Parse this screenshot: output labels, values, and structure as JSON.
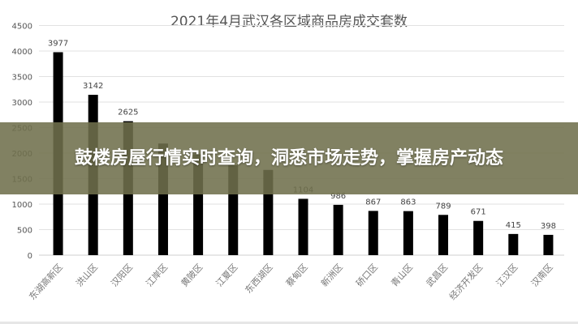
{
  "headline": "鼓楼房屋行情实时查询，洞悉市场走势，掌握房产动态",
  "chart_data": {
    "type": "bar",
    "title": "2021年4月武汉各区域商品房成交套数",
    "categories": [
      "东湖高新区",
      "洪山区",
      "汉阳区",
      "江岸区",
      "黄陂区",
      "江夏区",
      "东西湖区",
      "蔡甸区",
      "新洲区",
      "硚口区",
      "青山区",
      "武昌区",
      "经济开发区",
      "江汉区",
      "汉南区"
    ],
    "values": [
      3977,
      3142,
      2625,
      2187,
      1977,
      1764,
      1670,
      1104,
      986,
      867,
      863,
      789,
      671,
      415,
      398
    ],
    "labels": [
      "3977",
      "3142",
      "2625",
      "",
      "",
      "",
      "",
      "1104",
      "986",
      "867",
      "863",
      "789",
      "671",
      "415",
      "398"
    ],
    "yticks": [
      0,
      500,
      1000,
      1500,
      2000,
      2500,
      3000,
      3500,
      4000,
      4500
    ],
    "ylim": [
      0,
      4500
    ],
    "grid": true,
    "bar_color": "#000000"
  }
}
